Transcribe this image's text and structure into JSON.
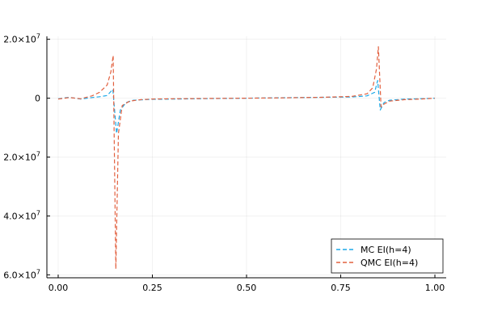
{
  "chart_data": {
    "type": "line",
    "title": "",
    "xlabel": "",
    "ylabel": "",
    "xlim": [
      -0.03,
      1.03
    ],
    "ylim": [
      -61000000,
      21000000
    ],
    "grid": true,
    "legend_position": "bottom-right",
    "x_ticks": [
      {
        "value": 0.0,
        "label": "0.00"
      },
      {
        "value": 0.25,
        "label": "0.25"
      },
      {
        "value": 0.5,
        "label": "0.50"
      },
      {
        "value": 0.75,
        "label": "0.75"
      },
      {
        "value": 1.0,
        "label": "1.00"
      }
    ],
    "y_ticks": [
      {
        "value": 20000000,
        "mantissa": "2.0×10",
        "exp": "7"
      },
      {
        "value": 0,
        "mantissa": "0",
        "exp": ""
      },
      {
        "value": -20000000,
        "mantissa": "2.0×10",
        "exp": "7"
      },
      {
        "value": -40000000,
        "mantissa": "4.0×10",
        "exp": "7"
      },
      {
        "value": -60000000,
        "mantissa": "6.0×10",
        "exp": "7"
      }
    ],
    "series": [
      {
        "name": "MC EI(h=4)",
        "color": "#1ca9e8",
        "x": [
          0.0,
          0.03,
          0.06,
          0.09,
          0.11,
          0.13,
          0.145,
          0.155,
          0.165,
          0.18,
          0.2,
          0.25,
          0.3,
          0.4,
          0.5,
          0.6,
          0.7,
          0.78,
          0.82,
          0.84,
          0.848,
          0.855,
          0.865,
          0.88,
          0.92,
          0.96,
          1.0
        ],
        "y": [
          -200000,
          300000,
          -300000,
          200000,
          500000,
          900000,
          3000000,
          -12000000,
          -4000000,
          -1500000,
          -700000,
          -400000,
          -300000,
          -150000,
          0,
          150000,
          300000,
          400000,
          800000,
          2000000,
          6000000,
          -4000000,
          -1500000,
          -700000,
          -300000,
          -200000,
          0
        ]
      },
      {
        "name": "QMC EI(h=4)",
        "color": "#e2603f",
        "x": [
          0.0,
          0.03,
          0.06,
          0.09,
          0.11,
          0.13,
          0.14,
          0.146,
          0.153,
          0.16,
          0.17,
          0.19,
          0.22,
          0.25,
          0.3,
          0.4,
          0.5,
          0.6,
          0.7,
          0.78,
          0.82,
          0.835,
          0.845,
          0.85,
          0.857,
          0.865,
          0.88,
          0.92,
          0.96,
          1.0
        ],
        "y": [
          -300000,
          200000,
          -200000,
          800000,
          2000000,
          4500000,
          9000000,
          14500000,
          -58000000,
          -12000000,
          -2500000,
          -1000000,
          -500000,
          -300000,
          -200000,
          -100000,
          0,
          100000,
          300000,
          600000,
          1500000,
          3500000,
          10000000,
          17500000,
          -3000000,
          -2000000,
          -1000000,
          -500000,
          -300000,
          0
        ]
      }
    ]
  }
}
